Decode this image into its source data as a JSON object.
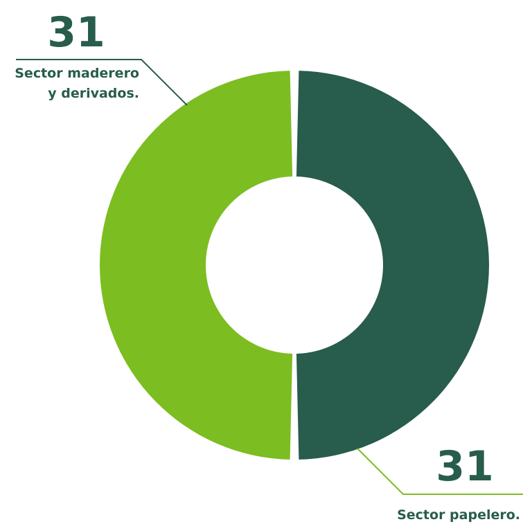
{
  "chart_data": {
    "type": "pie",
    "variant": "donut",
    "categories": [
      "Sector papelero.",
      "Sector maderero y derivados."
    ],
    "values": [
      31,
      31
    ],
    "slices": [
      {
        "label": "Sector papelero.",
        "value": 31,
        "value_text": "31",
        "color": "#285c4d",
        "leader_color": "#7cbd22"
      },
      {
        "label": "Sector maderero y derivados.",
        "label_lines": [
          "Sector maderero",
          "y derivados."
        ],
        "value": 31,
        "value_text": "31",
        "color": "#7cbd22",
        "leader_color": "#285c4d"
      }
    ],
    "title": "",
    "legend": "none"
  },
  "colors": {
    "text": "#285c4d",
    "background": "#ffffff"
  }
}
